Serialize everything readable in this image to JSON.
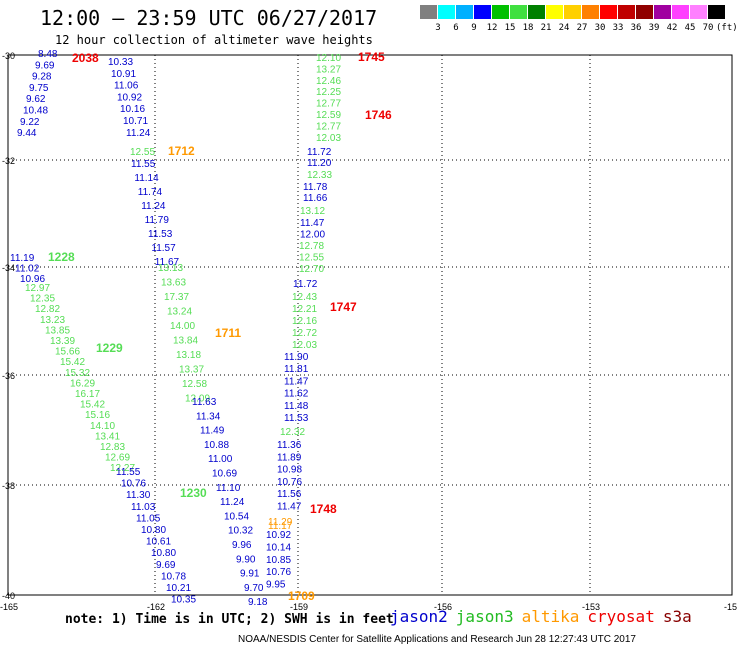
{
  "header": {
    "title": "12:00 – 23:59 UTC 06/27/2017",
    "subtitle": "12 hour collection of altimeter wave heights"
  },
  "colorbar": {
    "colors": [
      "#808080",
      "#00ffff",
      "#00b0ff",
      "#0000ff",
      "#00c000",
      "#40e040",
      "#008000",
      "#ffff00",
      "#ffd000",
      "#ff8000",
      "#ff0000",
      "#c00000",
      "#900000",
      "#a000a0",
      "#ff40ff",
      "#ff80ff",
      "#000000"
    ],
    "labels": [
      "3",
      "6",
      "9",
      "12",
      "15",
      "18",
      "21",
      "24",
      "27",
      "30",
      "33",
      "36",
      "39",
      "42",
      "45",
      "70",
      "(ft)"
    ]
  },
  "map": {
    "lon_ticks": [
      "-165",
      "-162",
      "-159",
      "-156",
      "-153",
      "-15"
    ],
    "lat_ticks": [
      "-30",
      "-32",
      "-34",
      "-36",
      "-38",
      "-40"
    ],
    "colors": {
      "jason2": "#0000cc",
      "jason3": "#55dd55",
      "altika": "#ff9900",
      "cryosat": "#ee0000"
    },
    "tracks": [
      {
        "id": "t1",
        "sat": "jason2",
        "text": [
          "8.48",
          "9.69",
          "9.28",
          "9.75",
          "9.62",
          "10.48",
          "9.22",
          "9.44"
        ],
        "label": "2038",
        "label_sat": "cryosat"
      },
      {
        "id": "t2",
        "sat": "jason2",
        "text": [
          "10.33",
          "10.91",
          "11.06",
          "10.92",
          "10.16",
          "10.71",
          "11.24"
        ]
      },
      {
        "id": "t3",
        "sat": "jason3",
        "text": [
          "12.55"
        ],
        "label": "1712",
        "label_sat": "altika"
      },
      {
        "id": "t4",
        "sat": "jason2",
        "text": [
          "11.55",
          "11.14",
          "11.74",
          "11.24",
          "11.79",
          "11.53",
          "11.57",
          "11.67"
        ]
      },
      {
        "id": "t5",
        "sat": "jason3",
        "text": [
          "13.13",
          "13.63",
          "17.37",
          "13.24",
          "14.00",
          "13.84",
          "13.18",
          "13.37",
          "12.58",
          "12.09"
        ],
        "label": "1711",
        "label_sat": "altika"
      },
      {
        "id": "t6",
        "sat": "jason2",
        "text": [
          "11.63",
          "11.34",
          "11.49",
          "10.88",
          "11.00",
          "10.69",
          "11.10",
          "11.24",
          "10.54",
          "10.32",
          "9.96",
          "9.90",
          "9.91",
          "9.70",
          "9.18"
        ],
        "label": "1230",
        "label_sat": "jason3"
      },
      {
        "id": "t7",
        "sat": "jason2",
        "text": [
          "11.19",
          "11.02",
          "10.96"
        ],
        "label": "1228",
        "label_sat": "jason3"
      },
      {
        "id": "t8",
        "sat": "jason3",
        "text": [
          "12.97",
          "12.35",
          "12.82",
          "13.23",
          "13.85",
          "13.39",
          "15.66",
          "15.42",
          "15.32",
          "16.29",
          "16.17",
          "15.42",
          "15.16",
          "14.10",
          "13.41",
          "12.83",
          "12.69",
          "12.27"
        ],
        "label": "1229",
        "label_sat": "jason3"
      },
      {
        "id": "t9",
        "sat": "jason2",
        "text": [
          "11.55",
          "10.76",
          "11.30",
          "11.03",
          "11.05",
          "10.80",
          "10.61",
          "10.80",
          "9.69",
          "10.78",
          "10.21",
          "10.35"
        ]
      },
      {
        "id": "t10",
        "sat": "jason3",
        "text": [
          "12.10",
          "13.27",
          "12.46",
          "12.25",
          "12.77",
          "12.59",
          "12.77",
          "12.03"
        ],
        "label": "1745",
        "label_sat": "cryosat"
      },
      {
        "id": "t11",
        "sat": "jason2",
        "text": [
          "11.72",
          "11.20"
        ]
      },
      {
        "id": "t12",
        "sat": "jason3",
        "text": [
          "12.33"
        ]
      },
      {
        "id": "t13",
        "sat": "jason2",
        "text": [
          "11.78",
          "11.66"
        ]
      },
      {
        "id": "t14",
        "sat": "jason3",
        "text": [
          "13.12"
        ]
      },
      {
        "id": "t15",
        "sat": "jason2",
        "text": [
          "11.47",
          "12.00"
        ]
      },
      {
        "id": "t16",
        "sat": "jason3",
        "text": [
          "12.78",
          "12.55",
          "12.70"
        ]
      },
      {
        "id": "t17",
        "sat": "jason2",
        "text": [
          "11.72"
        ]
      },
      {
        "id": "t18",
        "sat": "jason3",
        "text": [
          "12.43",
          "12.21",
          "12.16",
          "12.72",
          "12.03"
        ],
        "label": "1747",
        "label_sat": "cryosat"
      },
      {
        "id": "t19",
        "sat": "jason2",
        "text": [
          "11.90",
          "11.81",
          "11.47",
          "11.62",
          "11.48",
          "11.53"
        ]
      },
      {
        "id": "t20",
        "sat": "jason3",
        "text": [
          "12.32"
        ]
      },
      {
        "id": "t21",
        "sat": "jason2",
        "text": [
          "11.36",
          "11.89",
          "10.98",
          "10.76",
          "11.56",
          "11.47"
        ],
        "label": "1748",
        "label_sat": "cryosat"
      },
      {
        "id": "t22",
        "sat": "altika",
        "text": [
          "11.29",
          "11.17"
        ]
      },
      {
        "id": "t23",
        "sat": "jason2",
        "text": [
          "10.92",
          "10.14",
          "10.85",
          "10.76",
          "9.95"
        ],
        "label": "1709",
        "label_sat": "altika"
      }
    ],
    "extra_label": {
      "text": "1746",
      "sat": "cryosat"
    }
  },
  "footer": {
    "note": "note: 1) Time is in UTC; 2) SWH is in feet",
    "credit": "NOAA/NESDIS Center for Satellite Applications and Research    Jun 28 12:27:43 UTC 2017",
    "legend": [
      {
        "name": "jason2",
        "color": "#0000cc"
      },
      {
        "name": "jason3",
        "color": "#22bb22"
      },
      {
        "name": "altika",
        "color": "#ff9900"
      },
      {
        "name": "cryosat",
        "color": "#ee0000"
      },
      {
        "name": "s3a",
        "color": "#880000"
      }
    ]
  }
}
